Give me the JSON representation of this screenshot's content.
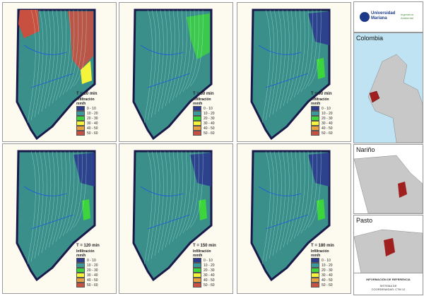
{
  "legend": {
    "title": "Infiltración",
    "unit": "mm/h",
    "classes": [
      {
        "label": "0 - 10",
        "color": "#2b3a8c"
      },
      {
        "label": "10 - 20",
        "color": "#3a9a9a"
      },
      {
        "label": "20 - 30",
        "color": "#3cd63c"
      },
      {
        "label": "30 - 40",
        "color": "#f4f43a"
      },
      {
        "label": "40 - 50",
        "color": "#e8a040"
      },
      {
        "label": "50 - 60",
        "color": "#c85040"
      }
    ]
  },
  "panels": [
    {
      "time": "T = 30 min",
      "unit": "mm/h"
    },
    {
      "time": "T = 60 min",
      "unit": "mm/h"
    },
    {
      "time": "T = 90 min",
      "unit": "mm/h"
    },
    {
      "time": "T = 120 min",
      "unit": "mm/h"
    },
    {
      "time": "T = 150 min",
      "unit": "mm/h"
    },
    {
      "time": "T = 180 min",
      "unit": "mm/h"
    }
  ],
  "sidebar": {
    "logo_text": "Universidad Mariana",
    "logo_text2": "Ingeniería Ambiental",
    "locator_1": "Colombia",
    "locator_2": "Nariño",
    "locator_3": "Pasto",
    "reference_title": "INFORMACIÓN DE REFERENCIA",
    "coord_system": "SISTEMA DE COORDENADAS: CTM 12"
  }
}
